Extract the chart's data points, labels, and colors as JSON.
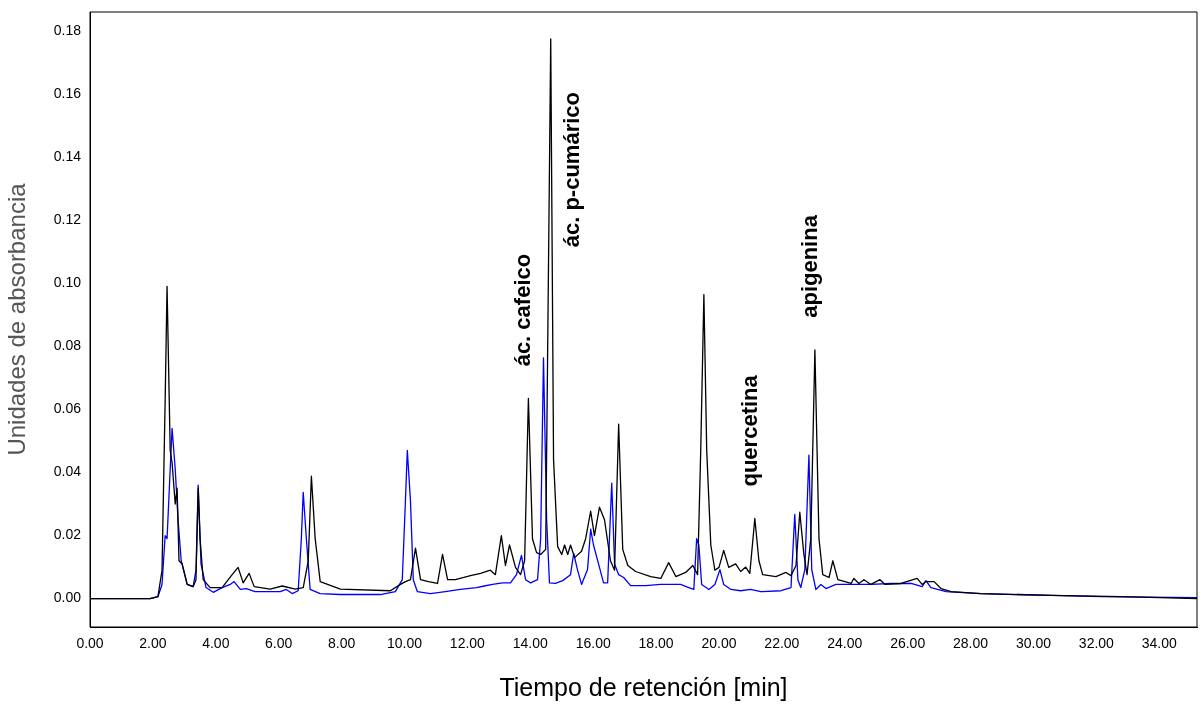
{
  "chart_data": {
    "type": "line",
    "xlabel": "Tiempo de retención [min]",
    "ylabel": "Unidades de absorbancia",
    "xlim": [
      0,
      35.2
    ],
    "ylim": [
      -0.009,
      0.186
    ],
    "xticks": [
      {
        "value": 0,
        "label": "0.00"
      },
      {
        "value": 2,
        "label": "2.00"
      },
      {
        "value": 4,
        "label": "4.00"
      },
      {
        "value": 6,
        "label": "6.00"
      },
      {
        "value": 8,
        "label": "8.00"
      },
      {
        "value": 10,
        "label": "10.00"
      },
      {
        "value": 12,
        "label": "12.00"
      },
      {
        "value": 14,
        "label": "14.00"
      },
      {
        "value": 16,
        "label": "16.00"
      },
      {
        "value": 18,
        "label": "18.00"
      },
      {
        "value": 20,
        "label": "20.00"
      },
      {
        "value": 22,
        "label": "22.00"
      },
      {
        "value": 24,
        "label": "24.00"
      },
      {
        "value": 26,
        "label": "26.00"
      },
      {
        "value": 28,
        "label": "28.00"
      },
      {
        "value": 30,
        "label": "30.00"
      },
      {
        "value": 32,
        "label": "32.00"
      },
      {
        "value": 34,
        "label": "34.00"
      }
    ],
    "yticks": [
      {
        "value": 0,
        "label": "0.00"
      },
      {
        "value": 0.02,
        "label": "0.02"
      },
      {
        "value": 0.04,
        "label": "0.04"
      },
      {
        "value": 0.06,
        "label": "0.06"
      },
      {
        "value": 0.08,
        "label": "0.08"
      },
      {
        "value": 0.1,
        "label": "0.10"
      },
      {
        "value": 0.12,
        "label": "0.12"
      },
      {
        "value": 0.14,
        "label": "0.14"
      },
      {
        "value": 0.16,
        "label": "0.16"
      },
      {
        "value": 0.18,
        "label": "0.18"
      }
    ],
    "grid": false,
    "legend": false,
    "marker": "none",
    "line_style": "solid",
    "annotations": [
      {
        "text": "ác. cafeico",
        "x": 13.94,
        "y": 0.0635
      },
      {
        "text": "ác. p-cumárico",
        "x": 14.65,
        "y": 0.1775
      },
      {
        "text": "quercetina",
        "x": 21.14,
        "y": 0.0254
      },
      {
        "text": "apigenina",
        "x": 23.05,
        "y": 0.0789
      }
    ],
    "series": [
      {
        "color": "#000000",
        "x": [
          0,
          1.91,
          2.16,
          2.29,
          2.39,
          2.45,
          2.55,
          2.61,
          2.71,
          2.77,
          2.83,
          2.93,
          3.09,
          3.28,
          3.37,
          3.44,
          3.5,
          3.6,
          3.82,
          4.2,
          4.52,
          4.71,
          4.87,
          5.06,
          5.22,
          5.73,
          6.11,
          6.53,
          6.78,
          6.94,
          7.04,
          7.16,
          7.32,
          7.96,
          9.55,
          9.87,
          10.03,
          10.19,
          10.35,
          10.51,
          10.76,
          11.05,
          11.21,
          11.37,
          11.62,
          12.1,
          12.42,
          12.73,
          12.89,
          13.08,
          13.21,
          13.34,
          13.53,
          13.69,
          13.82,
          13.94,
          14.07,
          14.2,
          14.33,
          14.49,
          14.65,
          14.74,
          14.87,
          15,
          15.09,
          15.19,
          15.28,
          15.41,
          15.63,
          15.76,
          15.92,
          16.04,
          16.2,
          16.36,
          16.55,
          16.68,
          16.81,
          16.94,
          17.1,
          17.35,
          17.83,
          18.15,
          18.4,
          18.63,
          18.94,
          19.17,
          19.32,
          19.42,
          19.52,
          19.61,
          19.74,
          19.87,
          20,
          20.15,
          20.31,
          20.53,
          20.69,
          20.85,
          20.98,
          21.14,
          21.27,
          21.39,
          21.81,
          22.13,
          22.29,
          22.45,
          22.57,
          22.7,
          22.8,
          22.92,
          23.05,
          23.18,
          23.3,
          23.5,
          23.62,
          23.78,
          24.2,
          24.29,
          24.45,
          24.61,
          24.83,
          25.12,
          25.28,
          25.79,
          26.3,
          26.46,
          26.58,
          26.84,
          27.06,
          27.38,
          28.33,
          30.56,
          32.79,
          35.2
        ],
        "values": [
          0,
          0,
          0.0006,
          0.009,
          0.063,
          0.099,
          0.047,
          0.043,
          0.03,
          0.035,
          0.012,
          0.011,
          0.0045,
          0.0038,
          0.006,
          0.035,
          0.019,
          0.006,
          0.0035,
          0.0035,
          0.0076,
          0.0099,
          0.005,
          0.008,
          0.0038,
          0.003,
          0.004,
          0.003,
          0.0035,
          0.012,
          0.0388,
          0.019,
          0.0054,
          0.003,
          0.0025,
          0.0045,
          0.0054,
          0.006,
          0.016,
          0.006,
          0.0054,
          0.0048,
          0.014,
          0.006,
          0.006,
          0.0073,
          0.008,
          0.009,
          0.0076,
          0.02,
          0.0105,
          0.017,
          0.0099,
          0.0076,
          0.012,
          0.0635,
          0.019,
          0.0146,
          0.014,
          0.0156,
          0.1775,
          0.044,
          0.0165,
          0.014,
          0.017,
          0.014,
          0.017,
          0.013,
          0.015,
          0.019,
          0.0277,
          0.02,
          0.029,
          0.025,
          0.012,
          0.009,
          0.0553,
          0.0156,
          0.0105,
          0.0086,
          0.007,
          0.0064,
          0.0114,
          0.007,
          0.0083,
          0.0105,
          0.0076,
          0.047,
          0.0964,
          0.047,
          0.017,
          0.009,
          0.0099,
          0.0153,
          0.0099,
          0.011,
          0.0086,
          0.01,
          0.008,
          0.0254,
          0.012,
          0.0076,
          0.007,
          0.0083,
          0.0073,
          0.0105,
          0.0274,
          0.014,
          0.0076,
          0.019,
          0.0789,
          0.019,
          0.0076,
          0.0067,
          0.012,
          0.006,
          0.0048,
          0.0064,
          0.0048,
          0.006,
          0.0045,
          0.006,
          0.0045,
          0.0048,
          0.0064,
          0.0045,
          0.0054,
          0.0054,
          0.0032,
          0.0022,
          0.0016,
          0.001,
          0.0006,
          0
        ]
      },
      {
        "color": "#0000ff",
        "x": [
          0,
          1.91,
          2.16,
          2.29,
          2.39,
          2.45,
          2.55,
          2.61,
          2.71,
          2.8,
          2.9,
          3.09,
          3.28,
          3.37,
          3.44,
          3.53,
          3.69,
          3.92,
          4.2,
          4.46,
          4.58,
          4.78,
          4.97,
          5.25,
          5.73,
          6.05,
          6.24,
          6.43,
          6.62,
          6.72,
          6.78,
          6.88,
          7,
          7.32,
          7.96,
          9.23,
          9.71,
          9.93,
          10.03,
          10.09,
          10.19,
          10.28,
          10.41,
          10.82,
          11.3,
          11.78,
          12.29,
          12.54,
          12.8,
          13.12,
          13.37,
          13.56,
          13.72,
          13.85,
          14.01,
          14.23,
          14.33,
          14.42,
          14.52,
          14.61,
          14.8,
          15.03,
          15.28,
          15.38,
          15.5,
          15.63,
          15.82,
          15.92,
          16.01,
          16.17,
          16.33,
          16.46,
          16.59,
          16.68,
          16.81,
          16.97,
          17.19,
          17.67,
          18.15,
          18.78,
          19.04,
          19.2,
          19.29,
          19.36,
          19.45,
          19.68,
          19.87,
          20.03,
          20.15,
          20.38,
          20.69,
          21.01,
          21.33,
          21.97,
          22.29,
          22.41,
          22.51,
          22.6,
          22.73,
          22.86,
          22.95,
          23.08,
          23.24,
          23.4,
          23.72,
          24.2,
          24.83,
          25.47,
          26.11,
          26.46,
          26.58,
          26.74,
          27.22,
          28.33,
          30.56,
          32.15,
          35.2
        ],
        "values": [
          0,
          0,
          0.0006,
          0.0045,
          0.02,
          0.019,
          0.041,
          0.054,
          0.041,
          0.025,
          0.012,
          0.0045,
          0.0038,
          0.009,
          0.036,
          0.011,
          0.0035,
          0.002,
          0.0035,
          0.0045,
          0.0054,
          0.0029,
          0.0032,
          0.0022,
          0.0022,
          0.0022,
          0.0029,
          0.0016,
          0.0025,
          0.019,
          0.0337,
          0.019,
          0.0029,
          0.0016,
          0.0013,
          0.0013,
          0.0022,
          0.006,
          0.031,
          0.047,
          0.031,
          0.006,
          0.0022,
          0.0016,
          0.0022,
          0.0029,
          0.0035,
          0.004,
          0.0045,
          0.005,
          0.005,
          0.0076,
          0.0137,
          0.006,
          0.005,
          0.006,
          0.019,
          0.0763,
          0.025,
          0.005,
          0.0048,
          0.0057,
          0.0076,
          0.0143,
          0.0092,
          0.0045,
          0.0092,
          0.022,
          0.017,
          0.011,
          0.005,
          0.005,
          0.0366,
          0.011,
          0.0076,
          0.0067,
          0.0041,
          0.0041,
          0.0045,
          0.0045,
          0.0035,
          0.0029,
          0.019,
          0.017,
          0.0045,
          0.0029,
          0.0045,
          0.0092,
          0.0045,
          0.0029,
          0.0025,
          0.0029,
          0.0022,
          0.0025,
          0.0035,
          0.0267,
          0.006,
          0.0035,
          0.0092,
          0.0455,
          0.0092,
          0.0029,
          0.0045,
          0.0032,
          0.0045,
          0.0045,
          0.0045,
          0.0048,
          0.0048,
          0.0038,
          0.0057,
          0.0035,
          0.0022,
          0.0016,
          0.001,
          0.0006,
          0.0003
        ]
      }
    ]
  }
}
